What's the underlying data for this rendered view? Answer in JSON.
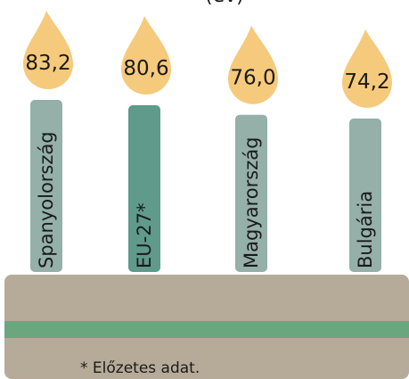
{
  "chart_data": {
    "type": "candle",
    "title": "(év)",
    "categories": [
      "Spanyolország",
      "EU-27*",
      "Magyarország",
      "Bulgária"
    ],
    "values": [
      83.2,
      80.6,
      76.0,
      74.2
    ],
    "value_labels": [
      "83,2",
      "80,6",
      "76,0",
      "74,2"
    ],
    "colors": [
      "#94b0a8",
      "#5f9a8b",
      "#94b0a8",
      "#94b0a8"
    ],
    "flame_color": "#f6ca7c",
    "footnote": "* Előzetes adat."
  }
}
